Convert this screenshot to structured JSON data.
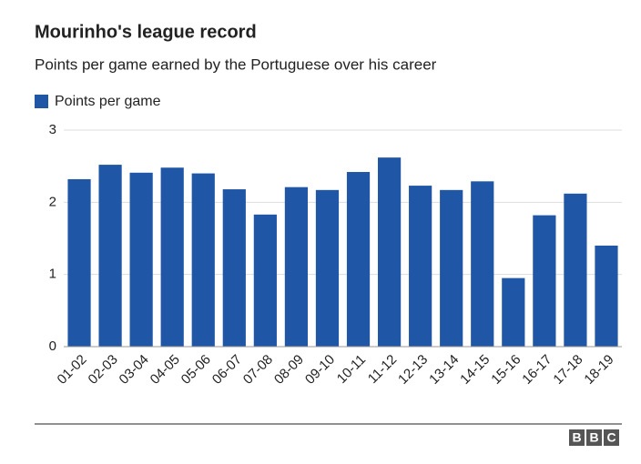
{
  "chart_data": {
    "type": "bar",
    "title": "Mourinho's league record",
    "subtitle": "Points per game earned by the Portuguese over his career",
    "categories": [
      "01-02",
      "02-03",
      "03-04",
      "04-05",
      "05-06",
      "06-07",
      "07-08",
      "08-09",
      "09-10",
      "10-11",
      "11-12",
      "12-13",
      "13-14",
      "14-15",
      "15-16",
      "16-17",
      "17-18",
      "18-19"
    ],
    "series": [
      {
        "name": "Points per game",
        "color": "#1f56a5",
        "values": [
          2.32,
          2.52,
          2.41,
          2.48,
          2.4,
          2.18,
          1.83,
          2.21,
          2.17,
          2.42,
          2.62,
          2.23,
          2.17,
          2.29,
          0.95,
          1.82,
          2.12,
          1.4
        ]
      }
    ],
    "ylim": [
      0,
      3
    ],
    "yticks": [
      0,
      1,
      2,
      3
    ],
    "grid": true,
    "legend": "top-left"
  },
  "footer": {
    "logo": [
      "B",
      "B",
      "C"
    ]
  }
}
